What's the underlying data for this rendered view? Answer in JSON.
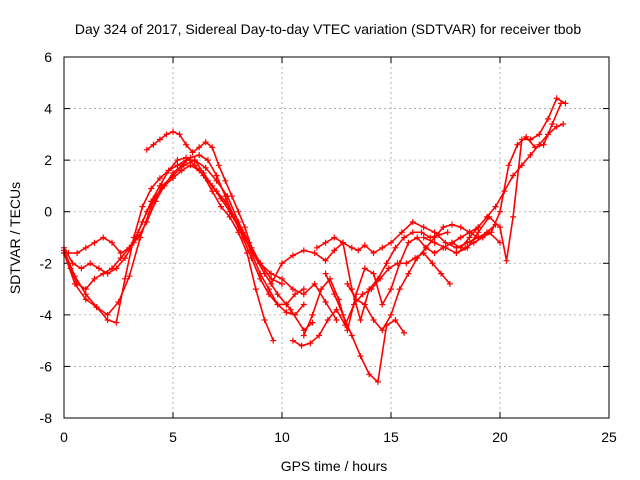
{
  "chart_data": {
    "type": "scatter",
    "title": "Day 324 of 2017, Sidereal Day-to-day VTEC variation (SDTVAR) for receiver tbob",
    "xlabel": "GPS time / hours",
    "ylabel": "SDTVAR / TECUs",
    "xlim": [
      0,
      25
    ],
    "ylim": [
      -8,
      6
    ],
    "xticks": [
      "0",
      "5",
      "10",
      "15",
      "20",
      "25"
    ],
    "yticks": [
      "-8",
      "-6",
      "-4",
      "-2",
      "0",
      "2",
      "4",
      "6"
    ],
    "grid": true,
    "marker": "+",
    "color": "#ff0000",
    "series": [
      {
        "name": "track-1",
        "x": [
          0.0,
          0.4,
          0.8,
          1.2,
          1.6,
          2.0,
          2.4,
          2.8,
          3.2,
          3.6,
          4.0,
          4.4,
          4.8,
          5.2,
          5.6,
          6.0,
          6.4,
          6.8,
          7.2,
          7.6,
          8.0,
          8.4,
          8.8,
          9.2,
          9.6
        ],
        "y": [
          -1.4,
          -2.0,
          -2.2,
          -2.0,
          -2.2,
          -2.4,
          -2.2,
          -1.8,
          -1.2,
          -0.4,
          0.4,
          1.0,
          1.6,
          2.0,
          2.1,
          1.8,
          1.4,
          0.8,
          0.2,
          -0.2,
          -0.8,
          -1.6,
          -3.0,
          -4.2,
          -5.0
        ]
      },
      {
        "name": "track-2",
        "x": [
          0.0,
          0.5,
          1.0,
          1.5,
          2.0,
          2.5,
          3.0,
          3.5,
          4.0,
          4.5,
          5.0,
          5.5,
          6.0,
          6.5,
          7.0,
          7.5,
          8.0,
          8.5,
          9.0,
          9.5,
          10.0
        ],
        "y": [
          -1.5,
          -2.5,
          -3.2,
          -3.7,
          -4.0,
          -3.5,
          -2.5,
          -1.0,
          0.2,
          1.0,
          1.4,
          1.8,
          2.0,
          1.7,
          1.2,
          0.6,
          -0.4,
          -1.2,
          -2.0,
          -2.6,
          -2.8
        ]
      },
      {
        "name": "track-3",
        "x": [
          0.0,
          0.5,
          1.0,
          1.5,
          2.0,
          2.4,
          2.8,
          3.2,
          3.6,
          4.0,
          4.4,
          4.8,
          5.2,
          5.6,
          6.0,
          6.4,
          6.8,
          7.2,
          7.6,
          8.0,
          8.6,
          9.2,
          9.8,
          10.4,
          11.0,
          11.4
        ],
        "y": [
          -1.6,
          -2.8,
          -3.4,
          -3.7,
          -4.2,
          -4.3,
          -2.6,
          -1.0,
          0.2,
          0.9,
          1.3,
          1.6,
          1.8,
          2.0,
          2.0,
          1.5,
          1.0,
          0.5,
          0.0,
          -0.6,
          -1.5,
          -2.4,
          -3.2,
          -3.8,
          -4.6,
          -4.3
        ]
      },
      {
        "name": "track-4",
        "x": [
          0.0,
          0.3,
          0.6,
          1.0,
          1.4,
          1.8,
          2.2,
          2.6,
          3.0,
          3.4,
          3.8,
          4.2,
          4.6,
          5.0,
          5.4,
          5.8,
          6.2,
          6.6,
          7.0,
          7.4,
          7.8,
          8.2,
          8.6,
          9.0,
          9.4,
          9.8,
          10.2,
          10.6,
          11.0
        ],
        "y": [
          -1.6,
          -2.2,
          -2.8,
          -3.0,
          -2.6,
          -2.4,
          -2.2,
          -1.8,
          -1.4,
          -0.8,
          0.0,
          0.6,
          1.0,
          1.3,
          1.6,
          1.8,
          1.6,
          1.2,
          0.8,
          0.4,
          -0.2,
          -0.8,
          -1.6,
          -2.4,
          -3.0,
          -3.6,
          -3.9,
          -4.0,
          -3.6
        ]
      },
      {
        "name": "track-5",
        "x": [
          0.2,
          0.6,
          1.0,
          1.4,
          1.8,
          2.2,
          2.6,
          3.0,
          3.4,
          3.8,
          4.2,
          4.6,
          5.0,
          5.4,
          5.8,
          6.2,
          6.6,
          7.0,
          7.4,
          7.8,
          8.2,
          8.6,
          9.0,
          9.4,
          9.8,
          10.2,
          10.6,
          11.0
        ],
        "y": [
          -1.6,
          -1.6,
          -1.4,
          -1.2,
          -1.0,
          -1.2,
          -1.6,
          -1.4,
          -1.0,
          -0.4,
          0.4,
          1.0,
          1.5,
          1.8,
          2.1,
          2.2,
          2.0,
          1.4,
          0.6,
          -0.2,
          -1.0,
          -1.8,
          -2.6,
          -3.2,
          -3.6,
          -3.6,
          -3.2,
          -3.0
        ]
      },
      {
        "name": "track-6",
        "x": [
          3.8,
          4.1,
          4.4,
          4.7,
          5.0,
          5.3,
          5.6,
          5.9,
          6.2,
          6.5,
          6.8,
          7.1,
          7.4,
          7.7,
          8.0,
          8.3,
          8.6,
          9.0,
          9.5,
          10.0,
          10.5,
          11.0,
          11.5,
          12.0,
          12.5
        ],
        "y": [
          2.4,
          2.6,
          2.8,
          3.0,
          3.1,
          3.0,
          2.6,
          2.3,
          2.5,
          2.7,
          2.5,
          1.8,
          1.2,
          0.6,
          0.0,
          -0.6,
          -1.4,
          -2.0,
          -2.4,
          -2.6,
          -3.0,
          -3.2,
          -2.8,
          -3.5,
          -4.2
        ]
      },
      {
        "name": "track-7",
        "x": [
          9.5,
          10.0,
          10.5,
          11.0,
          11.5,
          12.0,
          12.4,
          12.8,
          13.2,
          13.5,
          13.8,
          14.2,
          14.6,
          15.0,
          15.5,
          16.0,
          16.5,
          17.0,
          17.5,
          18.0,
          18.5,
          19.0,
          19.5,
          20.0
        ],
        "y": [
          -2.8,
          -2.0,
          -1.7,
          -1.5,
          -1.6,
          -1.9,
          -1.5,
          -1.2,
          -1.4,
          -1.5,
          -1.3,
          -1.6,
          -1.4,
          -1.2,
          -0.8,
          -0.4,
          -0.6,
          -0.8,
          -1.2,
          -1.4,
          -1.2,
          -1.0,
          -0.8,
          -1.2
        ]
      },
      {
        "name": "track-8",
        "x": [
          10.5,
          10.9,
          11.3,
          11.7,
          12.1,
          12.5,
          12.9,
          13.3,
          13.7,
          14.1,
          14.5,
          14.9,
          15.3,
          15.7,
          16.1,
          16.5,
          16.9,
          17.3,
          17.7
        ],
        "y": [
          -5.0,
          -5.2,
          -5.1,
          -4.8,
          -4.2,
          -3.8,
          -4.4,
          -3.6,
          -3.2,
          -3.0,
          -2.6,
          -2.2,
          -2.0,
          -2.0,
          -1.8,
          -1.6,
          -2.0,
          -2.4,
          -2.8
        ]
      },
      {
        "name": "track-9",
        "x": [
          11.0,
          11.4,
          11.8,
          12.2,
          12.6,
          13.0,
          13.4,
          13.8,
          14.2,
          14.6,
          15.0,
          15.4,
          15.8,
          16.2,
          16.6,
          17.0,
          17.4,
          17.8,
          18.2,
          18.6,
          19.0
        ],
        "y": [
          -4.8,
          -4.0,
          -3.0,
          -2.6,
          -3.4,
          -4.6,
          -3.2,
          -2.2,
          -2.4,
          -3.6,
          -3.0,
          -2.0,
          -1.2,
          -1.0,
          -1.4,
          -1.6,
          -1.4,
          -1.2,
          -1.0,
          -0.8,
          -0.6
        ]
      },
      {
        "name": "track-10",
        "x": [
          12.0,
          12.4,
          12.8,
          13.2,
          13.6,
          14.0,
          14.4,
          14.8,
          15.2,
          15.6
        ],
        "y": [
          -2.4,
          -3.2,
          -4.0,
          -4.8,
          -5.6,
          -6.3,
          -6.6,
          -4.4,
          -4.2,
          -4.7
        ]
      },
      {
        "name": "track-11",
        "x": [
          11.6,
          12.0,
          12.4,
          12.8,
          13.2,
          13.6,
          14.0,
          14.4,
          14.8,
          15.2,
          15.6,
          16.0,
          16.4,
          16.8,
          17.2,
          17.6
        ],
        "y": [
          -1.4,
          -1.2,
          -1.0,
          -1.2,
          -3.0,
          -4.2,
          -3.0,
          -2.6,
          -2.0,
          -1.4,
          -1.0,
          -0.8,
          -0.8,
          -1.0,
          -0.9,
          -0.8
        ]
      },
      {
        "name": "track-12",
        "x": [
          13.0,
          13.4,
          13.8,
          14.2,
          14.6,
          15.0,
          15.4,
          15.8,
          16.2,
          16.6,
          17.0,
          17.4,
          17.8,
          18.2,
          18.6,
          19.0,
          19.4,
          19.8
        ],
        "y": [
          -2.8,
          -3.4,
          -3.6,
          -4.2,
          -4.6,
          -4.0,
          -3.0,
          -2.4,
          -1.8,
          -1.4,
          -1.0,
          -0.6,
          -0.5,
          -0.6,
          -0.8,
          -1.0,
          -0.8,
          -0.5
        ]
      },
      {
        "name": "track-13",
        "x": [
          17.8,
          18.2,
          18.6,
          19.0,
          19.4,
          19.8,
          20.2,
          20.6,
          21.0,
          21.4,
          21.8,
          22.2,
          22.6,
          22.9
        ],
        "y": [
          -1.2,
          -1.4,
          -1.0,
          -0.6,
          -0.2,
          0.2,
          0.8,
          1.4,
          1.8,
          2.2,
          2.6,
          3.0,
          3.3,
          3.4
        ]
      },
      {
        "name": "track-14",
        "x": [
          18.0,
          18.4,
          18.8,
          19.2,
          19.6,
          20.0,
          20.4,
          20.8,
          21.2,
          21.6,
          22.0,
          22.4,
          22.8
        ],
        "y": [
          -1.6,
          -1.4,
          -1.2,
          -1.0,
          -0.8,
          0.0,
          1.8,
          2.6,
          2.9,
          2.5,
          2.6,
          3.4,
          4.2
        ]
      },
      {
        "name": "track-15",
        "x": [
          16.5,
          17.0,
          17.5,
          18.0,
          18.5,
          19.0,
          19.5,
          20.0,
          20.3,
          20.6,
          21.0,
          21.4,
          21.8,
          22.2,
          22.6,
          23.0
        ],
        "y": [
          -1.0,
          -1.2,
          -1.4,
          -1.6,
          -1.4,
          -0.8,
          -0.2,
          -0.6,
          -1.9,
          -0.2,
          2.8,
          2.8,
          3.0,
          3.6,
          4.4,
          4.2
        ]
      }
    ]
  }
}
